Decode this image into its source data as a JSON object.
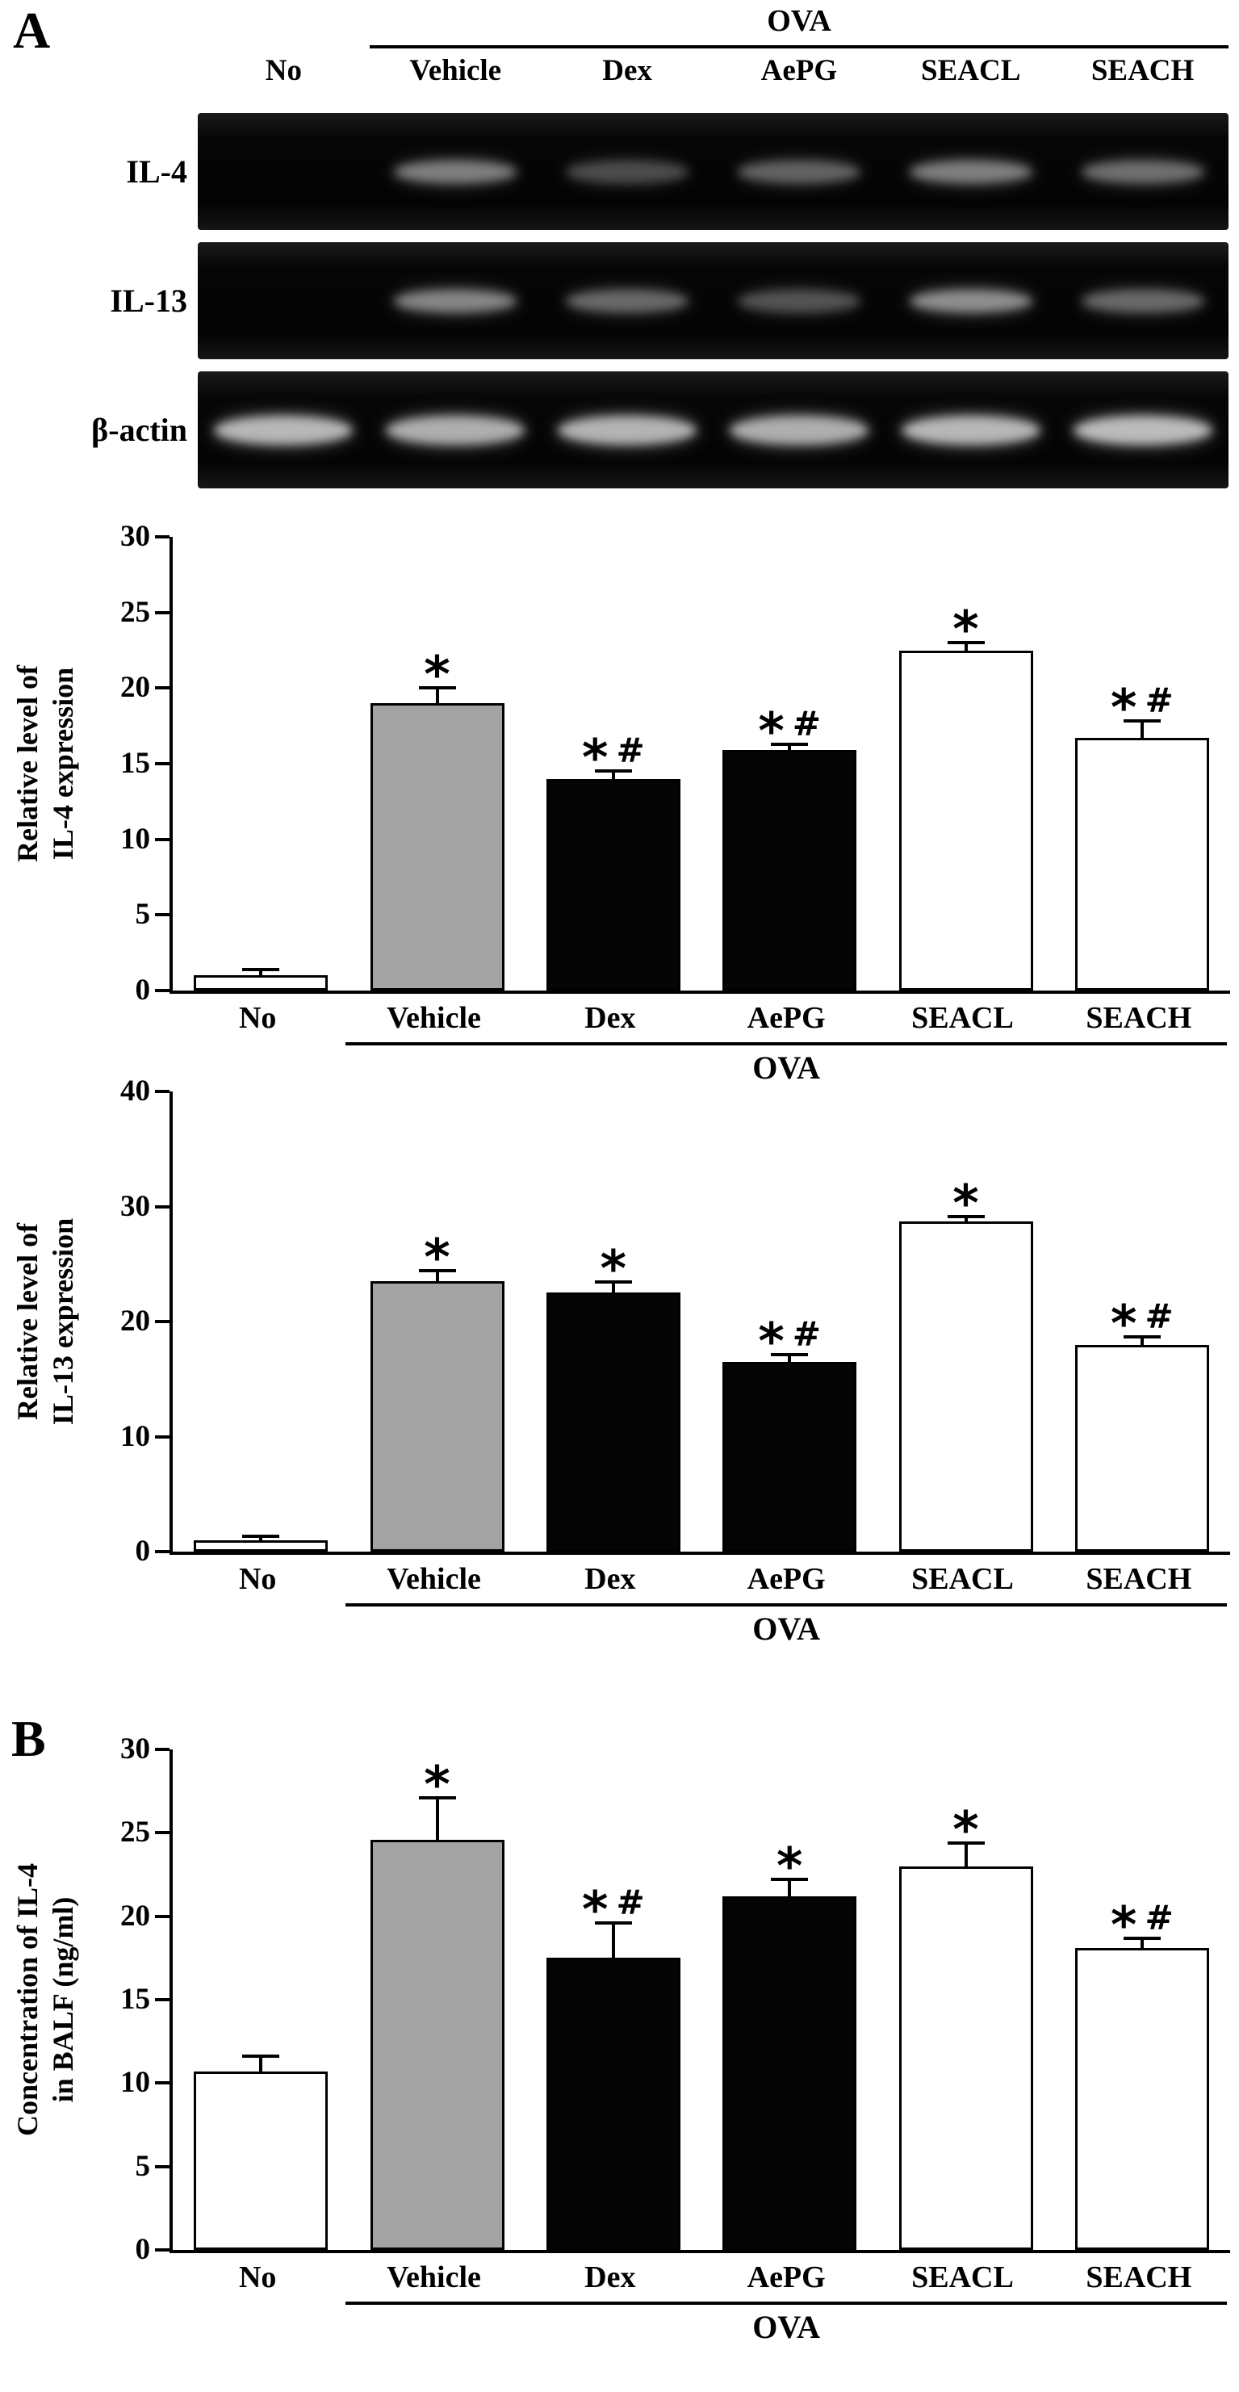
{
  "panels": {
    "a": "A",
    "b": "B"
  },
  "gel": {
    "group_label": "OVA",
    "columns": [
      "No",
      "Vehicle",
      "Dex",
      "AePG",
      "SEACL",
      "SEACH"
    ],
    "rows": [
      {
        "label": "IL-4",
        "band_intensities": [
          0,
          0.55,
          0.32,
          0.42,
          0.55,
          0.48
        ]
      },
      {
        "label": "IL-13",
        "band_intensities": [
          0,
          0.58,
          0.45,
          0.35,
          0.62,
          0.45
        ]
      },
      {
        "label": "β-actin",
        "band_intensities": [
          0.8,
          0.76,
          0.78,
          0.76,
          0.8,
          0.82
        ]
      }
    ]
  },
  "chart_data": [
    {
      "type": "bar",
      "panel": "A",
      "ylabel_lines": [
        "Relative level of",
        "IL-4 expression"
      ],
      "categories": [
        "No",
        "Vehicle",
        "Dex",
        "AePG",
        "SEACL",
        "SEACH"
      ],
      "values": [
        1.0,
        19.0,
        14.0,
        15.9,
        22.5,
        16.7
      ],
      "errors": [
        0.3,
        0.9,
        0.4,
        0.3,
        0.4,
        1.0
      ],
      "annotations": [
        "",
        "*",
        "*#",
        "*#",
        "*",
        "*#"
      ],
      "bar_colors": [
        "#ffffff",
        "#a3a3a3",
        "#050505",
        "#050505",
        "#ffffff",
        "#ffffff"
      ],
      "ylim": [
        0,
        30
      ],
      "yticks": [
        0,
        5,
        10,
        15,
        20,
        25,
        30
      ],
      "group_label": "OVA",
      "group_start_index": 1
    },
    {
      "type": "bar",
      "panel": "A",
      "ylabel_lines": [
        "Relative level of",
        "IL-13 expression"
      ],
      "categories": [
        "No",
        "Vehicle",
        "Dex",
        "AePG",
        "SEACL",
        "SEACH"
      ],
      "values": [
        1.0,
        23.5,
        22.5,
        16.5,
        28.7,
        18.0
      ],
      "errors": [
        0.2,
        0.8,
        0.8,
        0.5,
        0.3,
        0.5
      ],
      "annotations": [
        "",
        "*",
        "*",
        "*#",
        "*",
        "*#"
      ],
      "bar_colors": [
        "#ffffff",
        "#a3a3a3",
        "#050505",
        "#050505",
        "#ffffff",
        "#ffffff"
      ],
      "ylim": [
        0,
        40
      ],
      "yticks": [
        0,
        10,
        20,
        30,
        40
      ],
      "group_label": "OVA",
      "group_start_index": 1
    },
    {
      "type": "bar",
      "panel": "B",
      "ylabel_lines": [
        "Concentration of IL-4",
        "in BALF (ng/ml)"
      ],
      "categories": [
        "No",
        "Vehicle",
        "Dex",
        "AePG",
        "SEACL",
        "SEACH"
      ],
      "values": [
        10.7,
        24.6,
        17.5,
        21.2,
        23.0,
        18.1
      ],
      "errors": [
        0.8,
        2.4,
        2.0,
        0.9,
        1.3,
        0.5
      ],
      "annotations": [
        "",
        "*",
        "*#",
        "*",
        "*",
        "*#"
      ],
      "bar_colors": [
        "#ffffff",
        "#a3a3a3",
        "#050505",
        "#050505",
        "#ffffff",
        "#ffffff"
      ],
      "ylim": [
        0,
        30
      ],
      "yticks": [
        0,
        5,
        10,
        15,
        20,
        25,
        30
      ],
      "group_label": "OVA",
      "group_start_index": 1
    }
  ]
}
